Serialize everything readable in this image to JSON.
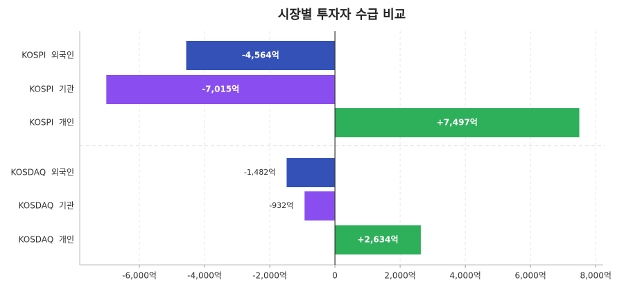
{
  "chart_data": {
    "type": "hbar",
    "title": "시장별 투자자 수급 비교",
    "categories": [
      "KOSPI  외국인",
      "KOSPI  기관",
      "KOSPI  개인",
      "KOSDAQ  외국인",
      "KOSDAQ  기관",
      "KOSDAQ  개인"
    ],
    "values": [
      -4564,
      -7015,
      7497,
      -1482,
      -932,
      2634
    ],
    "value_labels": [
      "-4,564억",
      "-7,015억",
      "+7,497억",
      "-1,482억",
      "-932억",
      "+2,634억"
    ],
    "colors": [
      "#3451b8",
      "#8a4ef0",
      "#2eaf5a",
      "#3451b8",
      "#8a4ef0",
      "#2eaf5a"
    ],
    "xlim": [
      -7830,
      8230
    ],
    "xticks": [
      {
        "value": -6000,
        "label": "-6,000억"
      },
      {
        "value": -4000,
        "label": "-4,000억"
      },
      {
        "value": -2000,
        "label": "-2,000억"
      },
      {
        "value": 0,
        "label": "0"
      },
      {
        "value": 2000,
        "label": "2,000억"
      },
      {
        "value": 4000,
        "label": "4,000억"
      },
      {
        "value": 6000,
        "label": "6,000억"
      },
      {
        "value": 8000,
        "label": "8,000억"
      }
    ],
    "grid": true
  }
}
